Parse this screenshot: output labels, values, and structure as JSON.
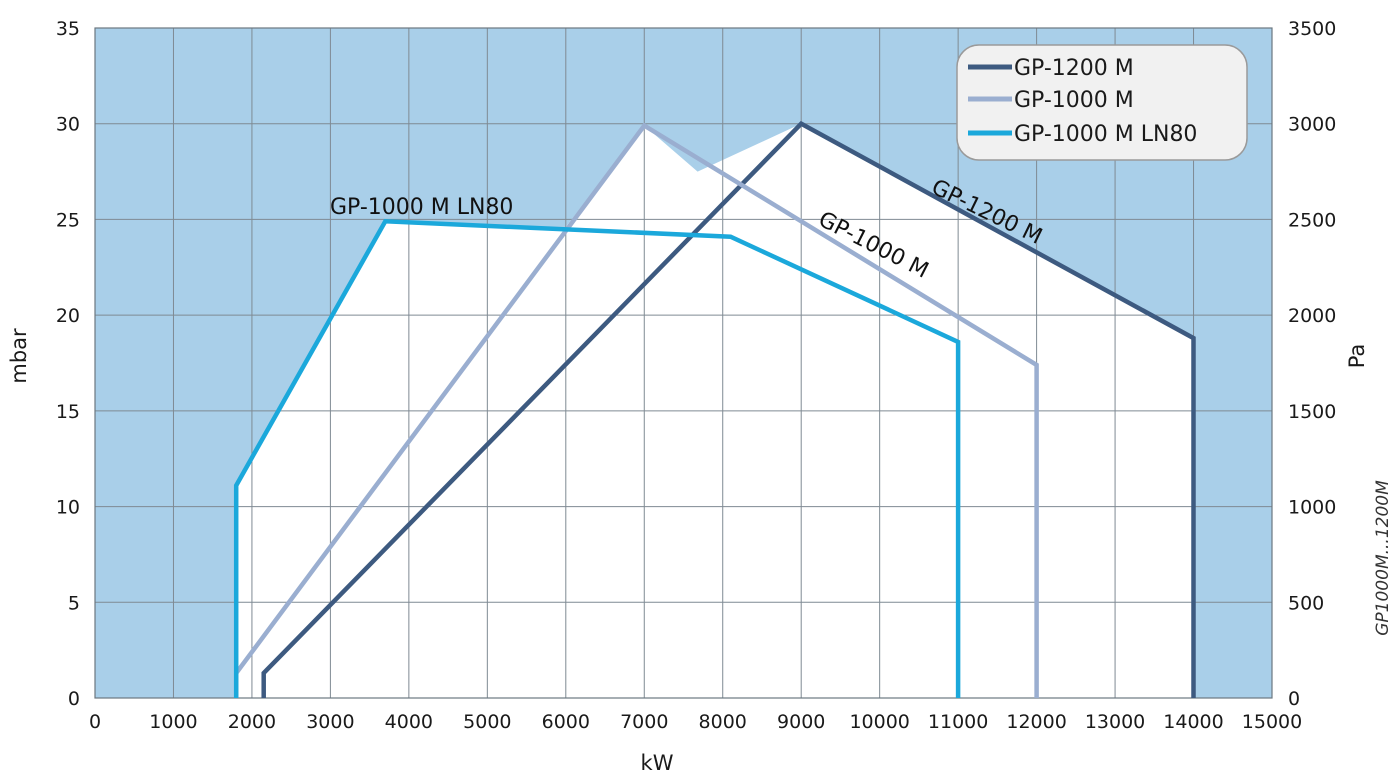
{
  "chart_data": {
    "type": "line",
    "x_label": "kW",
    "y_label_left": "mbar",
    "y_label_right": "Pa",
    "xlim": [
      0,
      15000
    ],
    "ylim": [
      0,
      35
    ],
    "ylim_right": [
      0,
      3500
    ],
    "x_ticks": [
      0,
      1000,
      2000,
      3000,
      4000,
      5000,
      6000,
      7000,
      8000,
      9000,
      10000,
      11000,
      12000,
      13000,
      14000,
      15000
    ],
    "y_ticks_left": [
      0,
      5,
      10,
      15,
      20,
      25,
      30,
      35
    ],
    "y_ticks_right": [
      0,
      500,
      1000,
      1500,
      2000,
      2500,
      3000,
      3500
    ],
    "grid": true,
    "legend_position": "top-right",
    "note": "GP1000M...1200M",
    "colors": {
      "outside_area": "#a9cfe9",
      "working_area": "#ffffff",
      "grid": "#7f8a93"
    },
    "series": [
      {
        "name": "GP-1200 M",
        "label": "GP-1200 M",
        "color": "#3d5a80",
        "points": [
          [
            2150,
            0
          ],
          [
            2150,
            1.3
          ],
          [
            9000,
            30
          ],
          [
            14000,
            18.8
          ],
          [
            14000,
            0
          ]
        ]
      },
      {
        "name": "GP-1000 M",
        "label": "GP-1000 M",
        "color": "#9aaed0",
        "points": [
          [
            1800,
            0
          ],
          [
            1800,
            1.3
          ],
          [
            7000,
            29.9
          ],
          [
            12000,
            17.4
          ],
          [
            12000,
            0
          ]
        ]
      },
      {
        "name": "GP-1000 M LN80",
        "label": "GP-1000 M LN80",
        "color": "#1ba8db",
        "points": [
          [
            1800,
            0
          ],
          [
            1800,
            11.1
          ],
          [
            3700,
            24.9
          ],
          [
            8100,
            24.1
          ],
          [
            11000,
            18.6
          ],
          [
            11000,
            0
          ]
        ]
      }
    ]
  }
}
